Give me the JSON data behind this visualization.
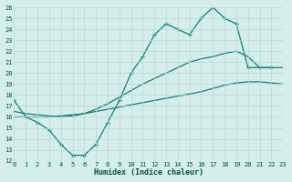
{
  "xlabel": "Humidex (Indice chaleur)",
  "bg_color": "#d4eeeb",
  "grid_color": "#b5d9d5",
  "line_color": "#1a7a6e",
  "xlim": [
    0,
    23
  ],
  "ylim": [
    12,
    26
  ],
  "xticks": [
    0,
    1,
    2,
    3,
    4,
    5,
    6,
    7,
    8,
    9,
    10,
    11,
    12,
    13,
    14,
    15,
    16,
    17,
    18,
    19,
    20,
    21,
    22,
    23
  ],
  "yticks": [
    12,
    13,
    14,
    15,
    16,
    17,
    18,
    19,
    20,
    21,
    22,
    23,
    24,
    25,
    26
  ],
  "line_a_x": [
    0,
    1,
    2,
    3,
    4,
    5,
    6,
    7,
    8,
    9,
    10,
    11,
    12,
    13,
    14,
    15,
    16,
    17,
    18,
    19,
    20,
    21,
    22,
    23
  ],
  "line_a_y": [
    16.0,
    16.0,
    16.0,
    16.0,
    16.1,
    16.2,
    16.3,
    16.5,
    16.7,
    16.9,
    17.1,
    17.3,
    17.5,
    17.7,
    17.9,
    18.1,
    18.3,
    18.6,
    18.9,
    19.1,
    19.2,
    19.2,
    19.1,
    19.0
  ],
  "line_b_x": [
    0,
    1,
    2,
    3,
    4,
    5,
    6,
    7,
    8,
    9,
    10,
    11,
    12,
    13,
    14,
    15,
    16,
    17,
    18,
    19,
    20,
    21,
    22,
    23
  ],
  "line_b_y": [
    16.5,
    16.3,
    16.2,
    16.1,
    16.0,
    16.1,
    16.3,
    16.7,
    17.2,
    17.8,
    18.4,
    19.0,
    19.5,
    20.0,
    20.5,
    21.0,
    21.3,
    21.5,
    21.8,
    22.0,
    21.5,
    20.5,
    20.5,
    20.5
  ],
  "line_c_x": [
    0,
    1,
    2,
    3,
    4,
    5,
    6,
    7,
    8,
    9,
    10,
    11,
    12,
    13,
    14,
    15,
    16,
    17,
    18,
    19,
    20,
    21,
    22
  ],
  "line_c_y": [
    17.5,
    16.0,
    15.5,
    14.8,
    13.5,
    12.5,
    12.5,
    13.5,
    15.5,
    17.5,
    20.0,
    21.5,
    23.5,
    24.5,
    24.0,
    23.5,
    25.0,
    26.0,
    25.0,
    24.5,
    20.5,
    20.5,
    20.5
  ]
}
